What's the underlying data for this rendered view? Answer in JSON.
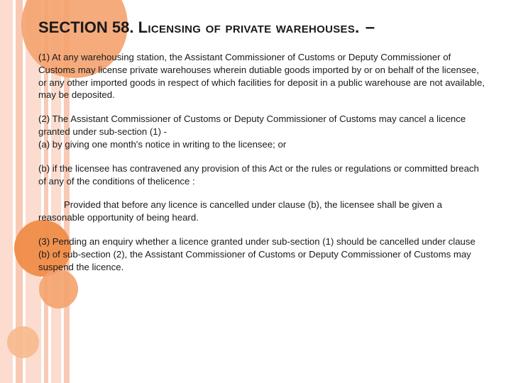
{
  "colors": {
    "text": "#1a1a1a",
    "background": "#ffffff",
    "stripe_light": "#fbdccf",
    "stripe_mid": "#f8c9b5",
    "circle1": "#f4a26e",
    "circle2": "#f08c48",
    "circle3": "#f4a26e",
    "circle4": "#f6b98c"
  },
  "heading": {
    "prefix": "SECTION 58.",
    "title": "Licensing of private warehouses.",
    "dash": "–"
  },
  "paragraphs": {
    "p1": "(1) At any warehousing station, the Assistant Commissioner of Customs or Deputy Commissioner of Customs may license private warehouses wherein dutiable goods imported by or on behalf of the licensee, or any other imported goods in respect of which facilities for deposit in a public warehouse are not available, may be deposited.",
    "p2": "(2)   The Assistant Commissioner of Customs or Deputy Commissioner of Customs may cancel a licence granted under sub-section (1) -",
    "p2a": "(a)   by giving one month's notice in writing to the licensee; or",
    "p3": "(b)   if the licensee has contravened any provision of this Act or the rules or regulations or committed breach of any of the conditions of thelicence :",
    "proviso": "Provided that before any licence is cancelled under clause (b), the licensee shall be given a reasonable opportunity of being heard.",
    "p4": "(3)   Pending an enquiry whether a licence granted under sub-section (1) should be cancelled under clause (b) of sub-section (2), the Assistant Commissioner of Customs or Deputy Commissioner of Customs may suspend the licence."
  }
}
